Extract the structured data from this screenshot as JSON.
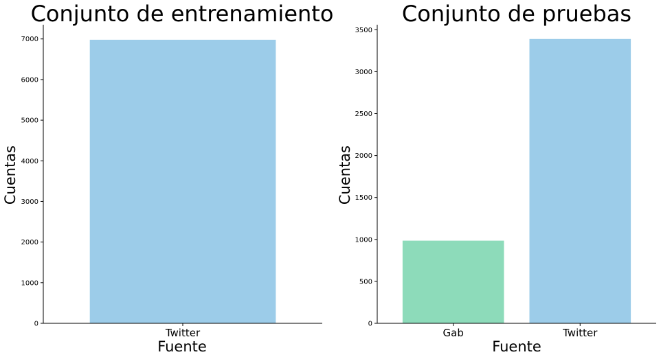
{
  "chart_data": [
    {
      "type": "bar",
      "title": "Conjunto de entrenamiento",
      "xlabel": "Fuente",
      "ylabel": "Cuentas",
      "categories": [
        "Twitter"
      ],
      "values": [
        6980
      ],
      "colors": [
        "#9ccce9"
      ],
      "ylim": [
        0,
        7350
      ],
      "yticks": [
        0,
        1000,
        2000,
        3000,
        4000,
        5000,
        6000,
        7000
      ],
      "grid": false
    },
    {
      "type": "bar",
      "title": "Conjunto de pruebas",
      "xlabel": "Fuente",
      "ylabel": "Cuentas",
      "categories": [
        "Gab",
        "Twitter"
      ],
      "values": [
        985,
        3390
      ],
      "colors": [
        "#8ddbba",
        "#9ccce9"
      ],
      "ylim": [
        0,
        3560
      ],
      "yticks": [
        0,
        500,
        1000,
        1500,
        2000,
        2500,
        3000,
        3500
      ],
      "grid": false
    }
  ]
}
